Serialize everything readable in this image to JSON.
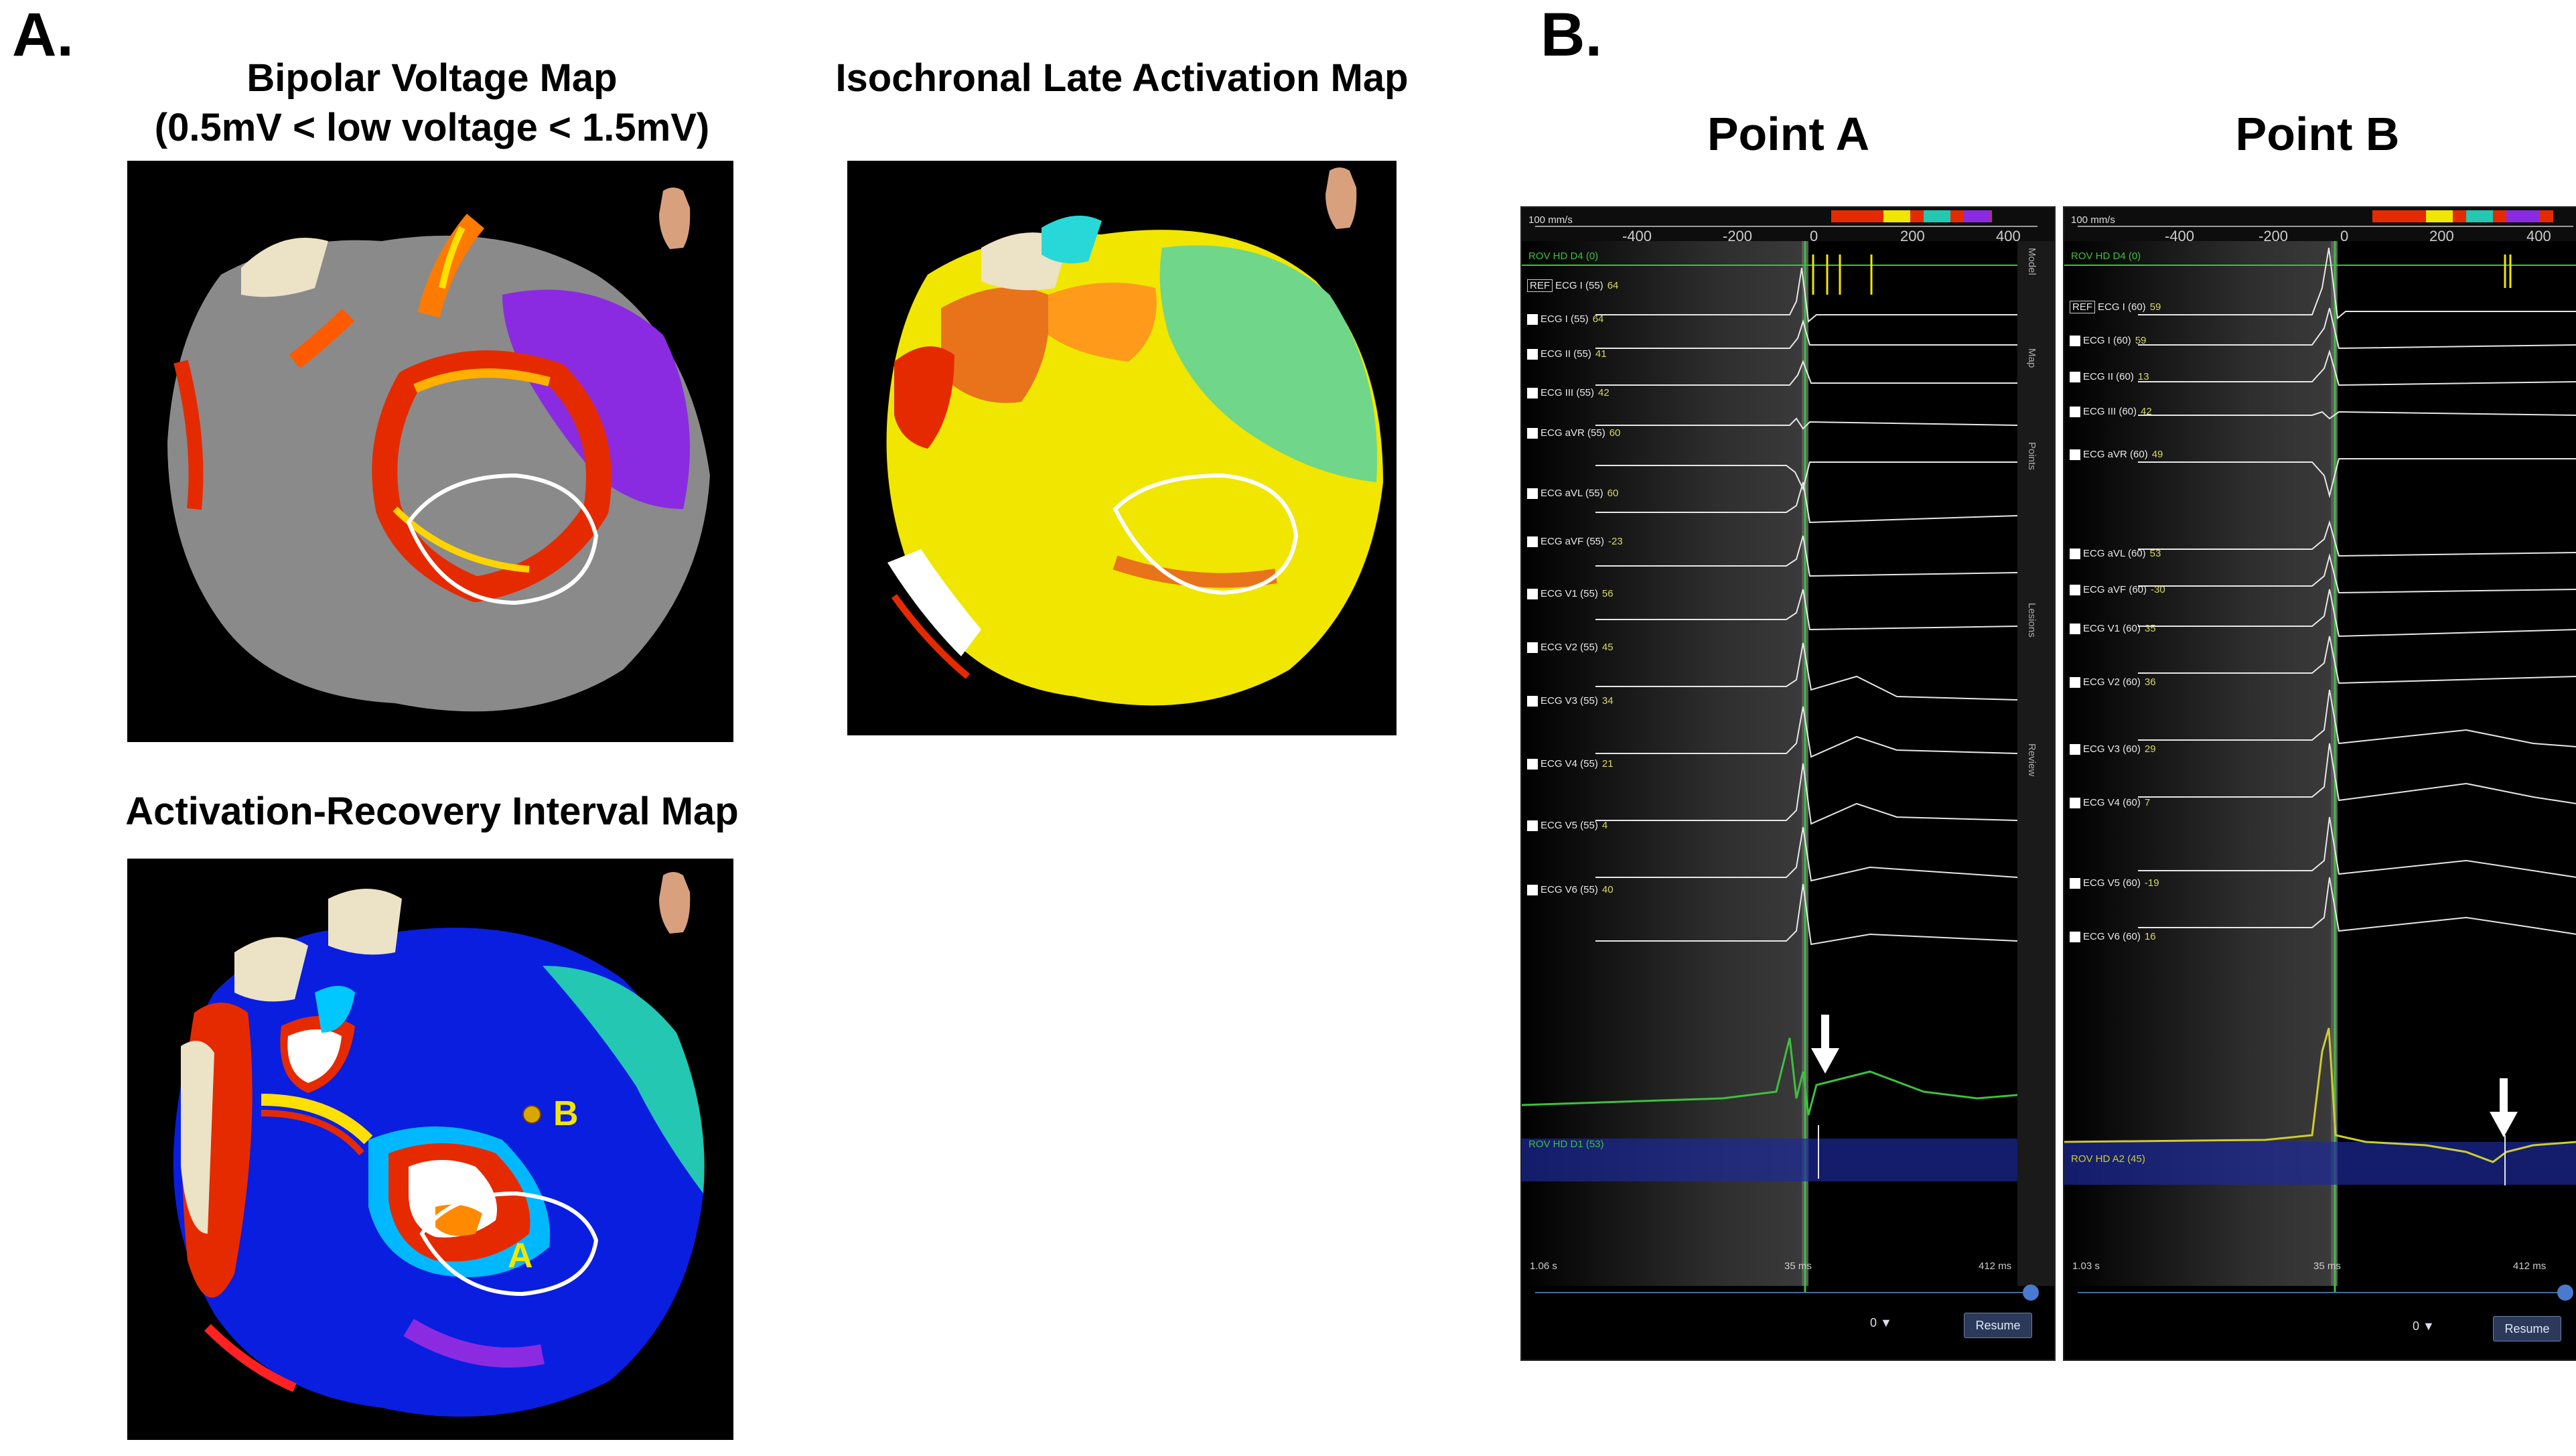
{
  "panel_a": {
    "letter": "A.",
    "voltage_map": {
      "title_line1": "Bipolar Voltage Map",
      "title_line2": "(0.5mV < low voltage < 1.5mV)"
    },
    "late_activation_map": {
      "title": "Isochronal Late Activation Map"
    },
    "ari_map": {
      "title": "Activation-Recovery Interval Map",
      "label_a": "A",
      "label_b": "B"
    }
  },
  "panel_b": {
    "letter": "B.",
    "point_a": {
      "title": "Point A",
      "speed": "100 mm/s",
      "scale_ticks": [
        "-400",
        "-200",
        "0",
        "200",
        "400"
      ],
      "top_label": "ROV HD D4 (0)",
      "ref_badge": "REF",
      "leads": [
        {
          "name": "ECG I (55)",
          "val": "64"
        },
        {
          "name": "ECG I (55)",
          "val": "64"
        },
        {
          "name": "ECG II (55)",
          "val": "41"
        },
        {
          "name": "ECG III (55)",
          "val": "42"
        },
        {
          "name": "ECG aVR (55)",
          "val": "60"
        },
        {
          "name": "ECG aVL (55)",
          "val": "60"
        },
        {
          "name": "ECG aVF (55)",
          "val": "-23"
        },
        {
          "name": "ECG V1 (55)",
          "val": "56"
        },
        {
          "name": "ECG V2 (55)",
          "val": "45"
        },
        {
          "name": "ECG V3 (55)",
          "val": "34"
        },
        {
          "name": "ECG V4 (55)",
          "val": "21"
        },
        {
          "name": "ECG V5 (55)",
          "val": "4"
        },
        {
          "name": "ECG V6 (55)",
          "val": "40"
        }
      ],
      "bipolar_label": "ROV HD D1 (53)",
      "time_left": "1.06 s",
      "time_mid": "35 ms",
      "time_right": "412 ms",
      "zero_value": "0",
      "resume": "Resume",
      "side_tabs": [
        "Model",
        "Map",
        "Points",
        "Lesions",
        "Review"
      ]
    },
    "point_b": {
      "title": "Point B",
      "speed": "100 mm/s",
      "scale_ticks": [
        "-400",
        "-200",
        "0",
        "200",
        "400"
      ],
      "top_label": "ROV HD D4 (0)",
      "ref_badge": "REF",
      "leads": [
        {
          "name": "ECG I (60)",
          "val": "59"
        },
        {
          "name": "ECG I (60)",
          "val": "59"
        },
        {
          "name": "ECG II (60)",
          "val": "13"
        },
        {
          "name": "ECG III (60)",
          "val": "42"
        },
        {
          "name": "ECG aVR (60)",
          "val": "49"
        },
        {
          "name": "ECG aVL (60)",
          "val": "53"
        },
        {
          "name": "ECG aVF (60)",
          "val": "-30"
        },
        {
          "name": "ECG V1 (60)",
          "val": "35"
        },
        {
          "name": "ECG V2 (60)",
          "val": "36"
        },
        {
          "name": "ECG V3 (60)",
          "val": "29"
        },
        {
          "name": "ECG V4 (60)",
          "val": "7"
        },
        {
          "name": "ECG V5 (60)",
          "val": "-19"
        },
        {
          "name": "ECG V6 (60)",
          "val": "16"
        }
      ],
      "bipolar_label": "ROV HD A2 (45)",
      "time_left": "1.03 s",
      "time_mid": "35 ms",
      "time_right": "412 ms",
      "zero_value": "0",
      "resume": "Resume"
    }
  },
  "colors": {
    "scar_gray": "#808080",
    "low_voltage_red": "#e52a00",
    "healthy_purple": "#8a2be2",
    "late_yellow": "#f0e600",
    "green": "#6fd68a",
    "ari_blue": "#0a1ee0",
    "outline": "#ffffff",
    "ecg_trace": "#e6e6e6",
    "bipolar_green": "#3fbf3f",
    "bipolar_yellow": "#cccc33"
  }
}
